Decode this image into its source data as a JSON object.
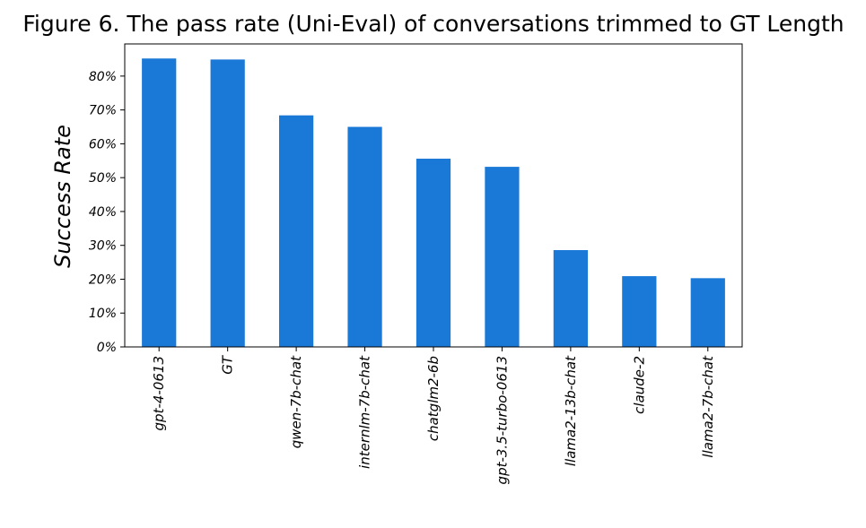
{
  "chart_data": {
    "type": "bar",
    "title": "Figure 6. The pass rate (Uni-Eval) of conversations trimmed to GT Length",
    "xlabel": "",
    "ylabel": "Success Rate",
    "categories": [
      "gpt-4-0613",
      "GT",
      "qwen-7b-chat",
      "internlm-7b-chat",
      "chatglm2-6b",
      "gpt-3.5-turbo-0613",
      "llama2-13b-chat",
      "claude-2",
      "llama2-7b-chat"
    ],
    "values": [
      85.2,
      84.9,
      68.4,
      65.0,
      55.6,
      53.2,
      28.6,
      20.9,
      20.3
    ],
    "ylim": [
      0,
      89.5
    ],
    "yticks": [
      0,
      10,
      20,
      30,
      40,
      50,
      60,
      70,
      80
    ],
    "ytick_labels": [
      "0%",
      "10%",
      "20%",
      "30%",
      "40%",
      "50%",
      "60%",
      "70%",
      "80%"
    ],
    "bar_color": "#1a78d6",
    "grid": false,
    "legend": "none"
  }
}
